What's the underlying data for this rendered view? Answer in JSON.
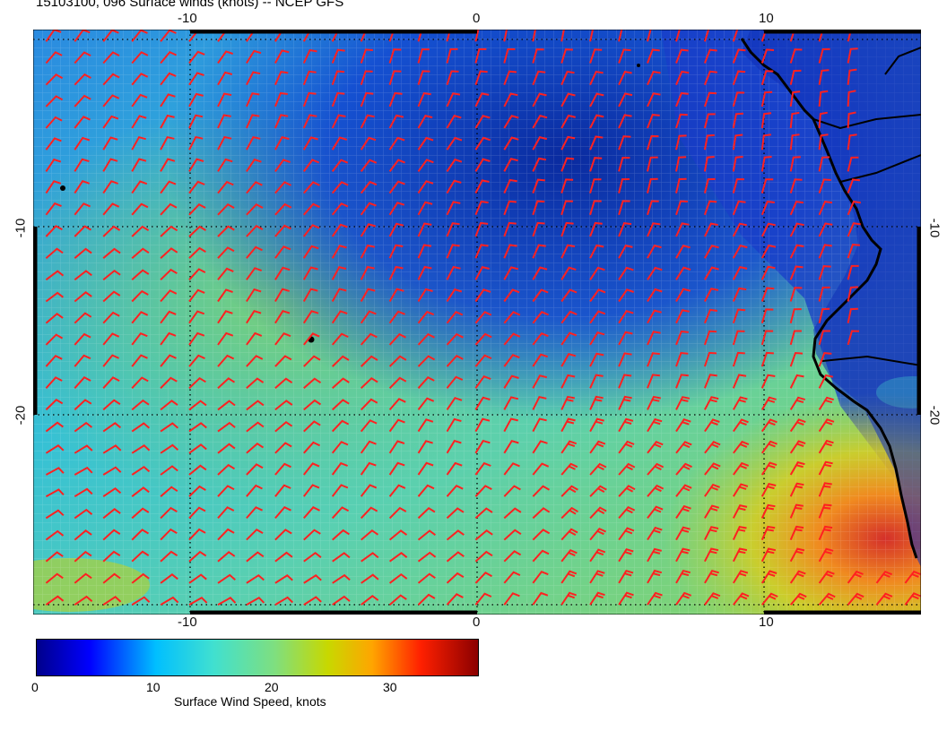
{
  "title": "15103100, 096 Surface winds (knots) -- NCEP GFS",
  "map": {
    "lon_ticks": [
      "-10",
      "0",
      "10"
    ],
    "lat_ticks": [
      "-10",
      "-20"
    ]
  },
  "colorbar": {
    "label": "Surface Wind Speed, knots",
    "ticks": [
      "0",
      "10",
      "20",
      "30"
    ],
    "range": [
      0,
      37
    ],
    "colors": [
      "#00008b",
      "#0000ff",
      "#00bfff",
      "#40e0d0",
      "#7fdf7f",
      "#c8d800",
      "#ffa500",
      "#ff2000",
      "#8b0000"
    ]
  }
}
